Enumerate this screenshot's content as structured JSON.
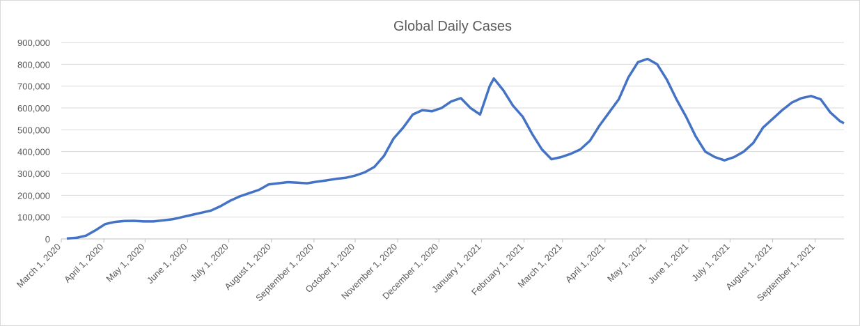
{
  "chart_data": {
    "type": "line",
    "title": "Global Daily Cases",
    "x": [
      "2020-03-05",
      "2020-03-12",
      "2020-03-19",
      "2020-03-26",
      "2020-04-02",
      "2020-04-09",
      "2020-04-16",
      "2020-04-23",
      "2020-04-30",
      "2020-05-07",
      "2020-05-14",
      "2020-05-21",
      "2020-05-28",
      "2020-06-04",
      "2020-06-11",
      "2020-06-18",
      "2020-06-25",
      "2020-07-02",
      "2020-07-09",
      "2020-07-16",
      "2020-07-23",
      "2020-07-30",
      "2020-08-06",
      "2020-08-13",
      "2020-08-20",
      "2020-08-27",
      "2020-09-03",
      "2020-09-10",
      "2020-09-17",
      "2020-09-24",
      "2020-10-01",
      "2020-10-08",
      "2020-10-15",
      "2020-10-22",
      "2020-10-29",
      "2020-11-05",
      "2020-11-12",
      "2020-11-19",
      "2020-11-26",
      "2020-12-03",
      "2020-12-10",
      "2020-12-17",
      "2020-12-24",
      "2020-12-31",
      "2021-01-07",
      "2021-01-10",
      "2021-01-17",
      "2021-01-24",
      "2021-01-31",
      "2021-02-07",
      "2021-02-14",
      "2021-02-21",
      "2021-02-28",
      "2021-03-07",
      "2021-03-14",
      "2021-03-21",
      "2021-03-28",
      "2021-04-04",
      "2021-04-11",
      "2021-04-18",
      "2021-04-25",
      "2021-05-02",
      "2021-05-09",
      "2021-05-16",
      "2021-05-23",
      "2021-05-30",
      "2021-06-06",
      "2021-06-13",
      "2021-06-20",
      "2021-06-27",
      "2021-07-04",
      "2021-07-11",
      "2021-07-18",
      "2021-07-25",
      "2021-08-01",
      "2021-08-08",
      "2021-08-15",
      "2021-08-22",
      "2021-08-29",
      "2021-09-05",
      "2021-09-12",
      "2021-09-19",
      "2021-09-22"
    ],
    "series": [
      {
        "name": "Global Daily Cases",
        "color": "#4472c4",
        "values": [
          2000,
          5000,
          15000,
          40000,
          68000,
          78000,
          82000,
          83000,
          80000,
          80000,
          85000,
          90000,
          100000,
          110000,
          120000,
          130000,
          150000,
          175000,
          195000,
          210000,
          225000,
          250000,
          255000,
          260000,
          258000,
          255000,
          262000,
          268000,
          275000,
          280000,
          290000,
          305000,
          330000,
          380000,
          460000,
          510000,
          570000,
          590000,
          585000,
          600000,
          630000,
          645000,
          600000,
          570000,
          700000,
          735000,
          680000,
          610000,
          560000,
          480000,
          410000,
          365000,
          375000,
          390000,
          410000,
          450000,
          520000,
          580000,
          640000,
          740000,
          810000,
          825000,
          800000,
          730000,
          640000,
          560000,
          470000,
          400000,
          375000,
          360000,
          375000,
          400000,
          440000,
          510000,
          550000,
          590000,
          625000,
          645000,
          655000,
          640000,
          580000,
          540000,
          530000
        ]
      }
    ],
    "xlim": [
      "2020-03-01",
      "2021-09-22"
    ],
    "xticks": [
      {
        "value": "2020-03-01",
        "label": "March 1, 2020"
      },
      {
        "value": "2020-04-01",
        "label": "April 1, 2020"
      },
      {
        "value": "2020-05-01",
        "label": "May 1, 2020"
      },
      {
        "value": "2020-06-01",
        "label": "June 1, 2020"
      },
      {
        "value": "2020-07-01",
        "label": "July 1, 2020"
      },
      {
        "value": "2020-08-01",
        "label": "August 1, 2020"
      },
      {
        "value": "2020-09-01",
        "label": "September 1, 2020"
      },
      {
        "value": "2020-10-01",
        "label": "October 1, 2020"
      },
      {
        "value": "2020-11-01",
        "label": "November 1, 2020"
      },
      {
        "value": "2020-12-01",
        "label": "December 1, 2020"
      },
      {
        "value": "2021-01-01",
        "label": "January 1, 2021"
      },
      {
        "value": "2021-02-01",
        "label": "February 1, 2021"
      },
      {
        "value": "2021-03-01",
        "label": "March 1, 2021"
      },
      {
        "value": "2021-04-01",
        "label": "April 1, 2021"
      },
      {
        "value": "2021-05-01",
        "label": "May 1, 2021"
      },
      {
        "value": "2021-06-01",
        "label": "June 1, 2021"
      },
      {
        "value": "2021-07-01",
        "label": "July 1, 2021"
      },
      {
        "value": "2021-08-01",
        "label": "August 1, 2021"
      },
      {
        "value": "2021-09-01",
        "label": "September 1, 2021"
      }
    ],
    "ylim": [
      0,
      900000
    ],
    "yticks": [
      0,
      {
        "value": 100000,
        "label": "100,000"
      },
      {
        "value": 200000,
        "label": "200,000"
      },
      {
        "value": 300000,
        "label": "300,000"
      },
      {
        "value": 400000,
        "label": "400,000"
      },
      {
        "value": 500000,
        "label": "500,000"
      },
      {
        "value": 600000,
        "label": "600,000"
      },
      {
        "value": 700000,
        "label": "700,000"
      },
      {
        "value": 800000,
        "label": "800,000"
      },
      {
        "value": 900000,
        "label": "900,000"
      }
    ],
    "grid": true
  }
}
